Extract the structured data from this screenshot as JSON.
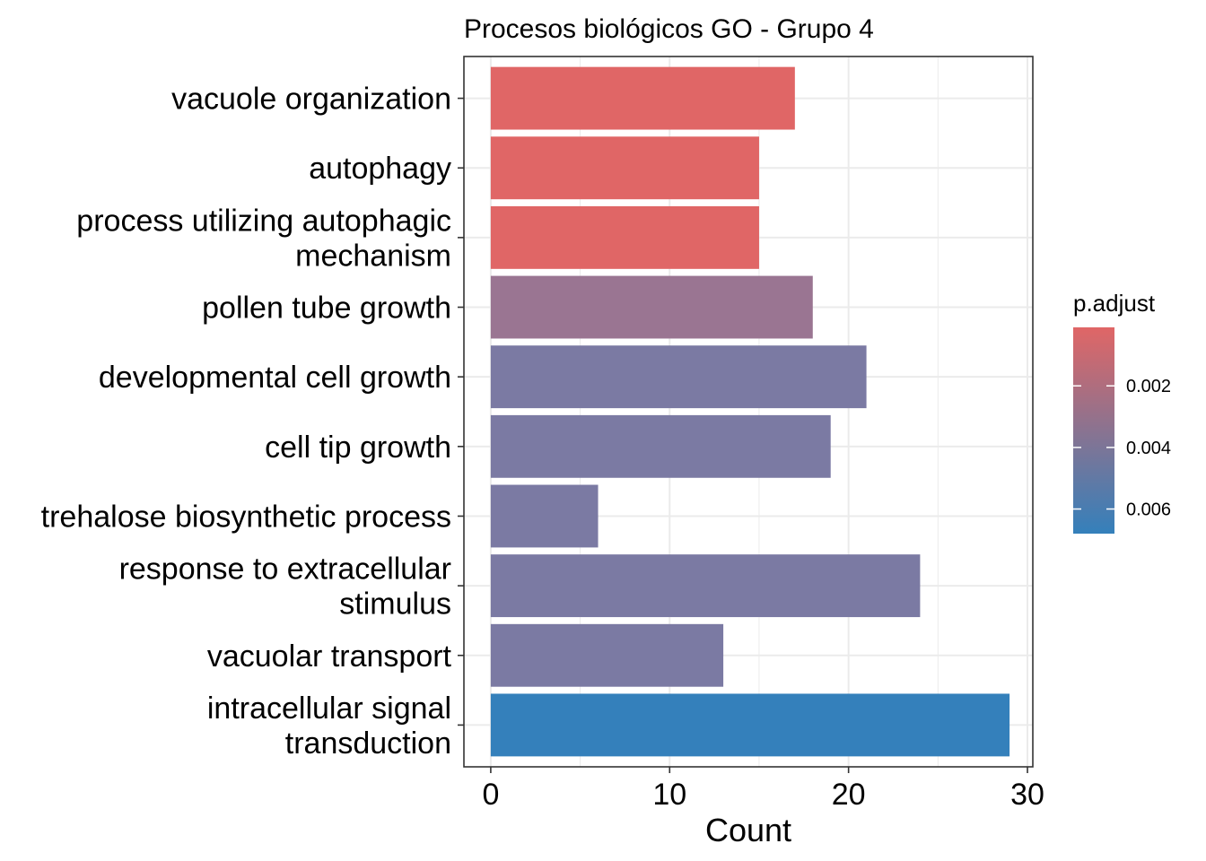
{
  "chart_data": {
    "type": "bar",
    "orientation": "horizontal",
    "title": "Procesos biológicos GO - Grupo 4",
    "xlabel": "Count",
    "ylabel": "",
    "xlim": [
      -1.5,
      30.3
    ],
    "xticks": [
      "0",
      "10",
      "20",
      "30"
    ],
    "grid": true,
    "categories": [
      [
        "vacuole organization"
      ],
      [
        "autophagy"
      ],
      [
        "process utilizing autophagic",
        "mechanism"
      ],
      [
        "pollen tube growth"
      ],
      [
        "developmental cell growth"
      ],
      [
        "cell tip growth"
      ],
      [
        "trehalose biosynthetic process"
      ],
      [
        "response to extracellular",
        "stimulus"
      ],
      [
        "vacuolar transport"
      ],
      [
        "intracellular signal",
        "transduction"
      ]
    ],
    "values": [
      17,
      15,
      15,
      18,
      21,
      19,
      6,
      24,
      13,
      29
    ],
    "p_adjust": [
      0.0001,
      0.0001,
      0.0001,
      0.0037,
      0.0049,
      0.0049,
      0.0049,
      0.0049,
      0.0049,
      0.0066
    ],
    "colors": [
      "#e06666",
      "#e06666",
      "#e06666",
      "#9a7592",
      "#7b7aa3",
      "#7b7aa3",
      "#7b7aa3",
      "#7b7aa3",
      "#7b7aa3",
      "#3480bb"
    ],
    "legend": {
      "title": "p.adjust",
      "position": "right",
      "color_low": "#e06666",
      "color_high": "#3480bb",
      "range": [
        0.0001,
        0.0068
      ],
      "ticks": [
        {
          "value": 0.002,
          "label": "0.002"
        },
        {
          "value": 0.004,
          "label": "0.004"
        },
        {
          "value": 0.006,
          "label": "0.006"
        }
      ]
    }
  }
}
